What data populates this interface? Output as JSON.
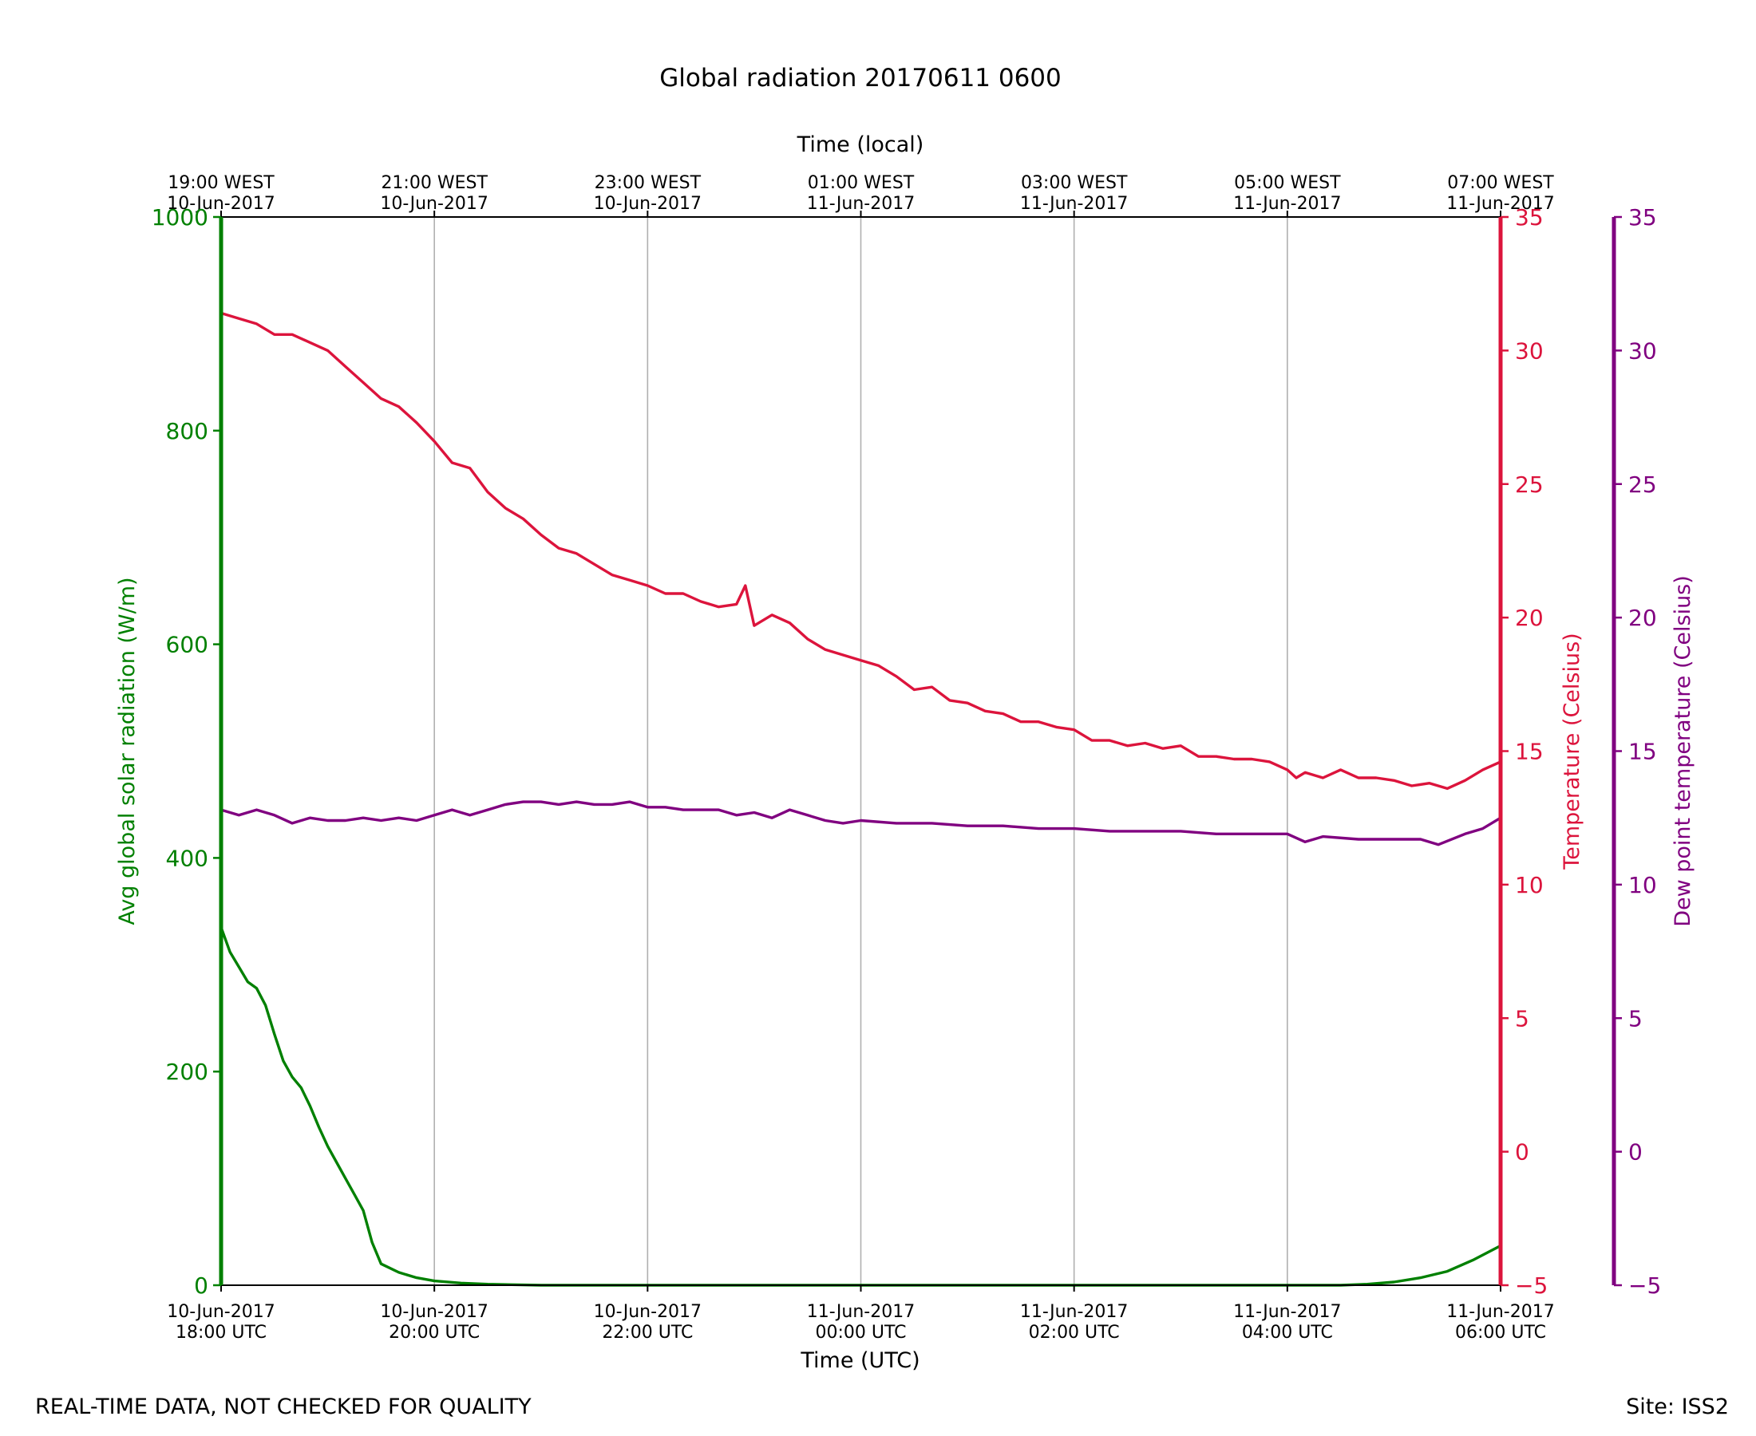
{
  "footer": {
    "disclaimer": "REAL-TIME DATA, NOT CHECKED FOR QUALITY",
    "site": "Site: ISS2"
  },
  "colors": {
    "radiation": "#008000",
    "temperature": "#dc143c",
    "dewpoint": "#800080",
    "grid": "#b0b0b0",
    "axis": "#000000"
  },
  "chart_data": {
    "type": "line",
    "title": "Global radiation 20170611 0600",
    "xlabel": "Time (UTC)",
    "xlabel_top": "Time (local)",
    "xlim": [
      "2017-06-10T18:00Z",
      "2017-06-11T06:00Z"
    ],
    "grid": "vertical",
    "x_ticks_bottom": [
      {
        "x": "2017-06-10T18:00Z",
        "date": "10-Jun-2017",
        "time": "18:00 UTC"
      },
      {
        "x": "2017-06-10T20:00Z",
        "date": "10-Jun-2017",
        "time": "20:00 UTC"
      },
      {
        "x": "2017-06-10T22:00Z",
        "date": "10-Jun-2017",
        "time": "22:00 UTC"
      },
      {
        "x": "2017-06-11T00:00Z",
        "date": "11-Jun-2017",
        "time": "00:00 UTC"
      },
      {
        "x": "2017-06-11T02:00Z",
        "date": "11-Jun-2017",
        "time": "02:00 UTC"
      },
      {
        "x": "2017-06-11T04:00Z",
        "date": "11-Jun-2017",
        "time": "04:00 UTC"
      },
      {
        "x": "2017-06-11T06:00Z",
        "date": "11-Jun-2017",
        "time": "06:00 UTC"
      }
    ],
    "x_ticks_top": [
      {
        "x": "2017-06-10T18:00Z",
        "time": "19:00 WEST",
        "date": "10-Jun-2017"
      },
      {
        "x": "2017-06-10T20:00Z",
        "time": "21:00 WEST",
        "date": "10-Jun-2017"
      },
      {
        "x": "2017-06-10T22:00Z",
        "time": "23:00 WEST",
        "date": "10-Jun-2017"
      },
      {
        "x": "2017-06-11T00:00Z",
        "time": "01:00 WEST",
        "date": "11-Jun-2017"
      },
      {
        "x": "2017-06-11T02:00Z",
        "time": "03:00 WEST",
        "date": "11-Jun-2017"
      },
      {
        "x": "2017-06-11T04:00Z",
        "time": "05:00 WEST",
        "date": "11-Jun-2017"
      },
      {
        "x": "2017-06-11T06:00Z",
        "time": "07:00 WEST",
        "date": "11-Jun-2017"
      }
    ],
    "axes": [
      {
        "id": "radiation",
        "side": "left",
        "label": "Avg global solar radiation (W/m)",
        "ylim": [
          0,
          1000
        ],
        "ticks": [
          0,
          200,
          400,
          600,
          800,
          1000
        ],
        "tick_labels": [
          "0",
          "200",
          "400",
          "600",
          "800",
          "1000"
        ],
        "color": "#008000"
      },
      {
        "id": "temperature",
        "side": "right",
        "label": "Temperature (Celsius)",
        "ylim": [
          -5,
          35
        ],
        "ticks": [
          -5,
          0,
          5,
          10,
          15,
          20,
          25,
          30,
          35
        ],
        "tick_labels": [
          "−5",
          "0",
          "5",
          "10",
          "15",
          "20",
          "25",
          "30",
          "35"
        ],
        "color": "#dc143c"
      },
      {
        "id": "dewpoint",
        "side": "right-outer",
        "label": "Dew point temperature (Celsius)",
        "ylim": [
          -5,
          35
        ],
        "ticks": [
          -5,
          0,
          5,
          10,
          15,
          20,
          25,
          30,
          35
        ],
        "tick_labels": [
          "−5",
          "0",
          "5",
          "10",
          "15",
          "20",
          "25",
          "30",
          "35"
        ],
        "color": "#800080"
      }
    ],
    "series": [
      {
        "axis": "radiation",
        "points": [
          [
            "2017-06-10T18:00Z",
            335
          ],
          [
            "2017-06-10T18:05Z",
            312
          ],
          [
            "2017-06-10T18:10Z",
            298
          ],
          [
            "2017-06-10T18:15Z",
            284
          ],
          [
            "2017-06-10T18:20Z",
            278
          ],
          [
            "2017-06-10T18:25Z",
            262
          ],
          [
            "2017-06-10T18:30Z",
            235
          ],
          [
            "2017-06-10T18:35Z",
            210
          ],
          [
            "2017-06-10T18:40Z",
            195
          ],
          [
            "2017-06-10T18:45Z",
            185
          ],
          [
            "2017-06-10T18:50Z",
            168
          ],
          [
            "2017-06-10T18:55Z",
            148
          ],
          [
            "2017-06-10T19:00Z",
            130
          ],
          [
            "2017-06-10T19:05Z",
            115
          ],
          [
            "2017-06-10T19:10Z",
            100
          ],
          [
            "2017-06-10T19:15Z",
            85
          ],
          [
            "2017-06-10T19:20Z",
            70
          ],
          [
            "2017-06-10T19:25Z",
            40
          ],
          [
            "2017-06-10T19:30Z",
            20
          ],
          [
            "2017-06-10T19:40Z",
            12
          ],
          [
            "2017-06-10T19:50Z",
            7
          ],
          [
            "2017-06-10T20:00Z",
            4
          ],
          [
            "2017-06-10T20:15Z",
            2
          ],
          [
            "2017-06-10T20:30Z",
            1
          ],
          [
            "2017-06-10T21:00Z",
            0
          ],
          [
            "2017-06-11T02:00Z",
            0
          ],
          [
            "2017-06-11T04:30Z",
            0
          ],
          [
            "2017-06-11T04:45Z",
            1
          ],
          [
            "2017-06-11T05:00Z",
            3
          ],
          [
            "2017-06-11T05:15Z",
            7
          ],
          [
            "2017-06-11T05:30Z",
            13
          ],
          [
            "2017-06-11T05:45Z",
            24
          ],
          [
            "2017-06-11T06:00Z",
            37
          ]
        ]
      },
      {
        "axis": "temperature",
        "points": [
          [
            "2017-06-10T18:00Z",
            31.4
          ],
          [
            "2017-06-10T18:10Z",
            31.2
          ],
          [
            "2017-06-10T18:20Z",
            31.0
          ],
          [
            "2017-06-10T18:30Z",
            30.6
          ],
          [
            "2017-06-10T18:40Z",
            30.6
          ],
          [
            "2017-06-10T18:50Z",
            30.3
          ],
          [
            "2017-06-10T19:00Z",
            30.0
          ],
          [
            "2017-06-10T19:10Z",
            29.4
          ],
          [
            "2017-06-10T19:20Z",
            28.8
          ],
          [
            "2017-06-10T19:30Z",
            28.2
          ],
          [
            "2017-06-10T19:40Z",
            27.9
          ],
          [
            "2017-06-10T19:50Z",
            27.3
          ],
          [
            "2017-06-10T20:00Z",
            26.6
          ],
          [
            "2017-06-10T20:10Z",
            25.8
          ],
          [
            "2017-06-10T20:20Z",
            25.6
          ],
          [
            "2017-06-10T20:30Z",
            24.7
          ],
          [
            "2017-06-10T20:40Z",
            24.1
          ],
          [
            "2017-06-10T20:50Z",
            23.7
          ],
          [
            "2017-06-10T21:00Z",
            23.1
          ],
          [
            "2017-06-10T21:10Z",
            22.6
          ],
          [
            "2017-06-10T21:20Z",
            22.4
          ],
          [
            "2017-06-10T21:30Z",
            22.0
          ],
          [
            "2017-06-10T21:40Z",
            21.6
          ],
          [
            "2017-06-10T21:50Z",
            21.4
          ],
          [
            "2017-06-10T22:00Z",
            21.2
          ],
          [
            "2017-06-10T22:10Z",
            20.9
          ],
          [
            "2017-06-10T22:20Z",
            20.9
          ],
          [
            "2017-06-10T22:30Z",
            20.6
          ],
          [
            "2017-06-10T22:40Z",
            20.4
          ],
          [
            "2017-06-10T22:50Z",
            20.5
          ],
          [
            "2017-06-10T22:55Z",
            21.2
          ],
          [
            "2017-06-10T23:00Z",
            19.7
          ],
          [
            "2017-06-10T23:10Z",
            20.1
          ],
          [
            "2017-06-10T23:20Z",
            19.8
          ],
          [
            "2017-06-10T23:30Z",
            19.2
          ],
          [
            "2017-06-10T23:40Z",
            18.8
          ],
          [
            "2017-06-10T23:50Z",
            18.6
          ],
          [
            "2017-06-11T00:00Z",
            18.4
          ],
          [
            "2017-06-11T00:10Z",
            18.2
          ],
          [
            "2017-06-11T00:20Z",
            17.8
          ],
          [
            "2017-06-11T00:30Z",
            17.3
          ],
          [
            "2017-06-11T00:40Z",
            17.4
          ],
          [
            "2017-06-11T00:50Z",
            16.9
          ],
          [
            "2017-06-11T01:00Z",
            16.8
          ],
          [
            "2017-06-11T01:10Z",
            16.5
          ],
          [
            "2017-06-11T01:20Z",
            16.4
          ],
          [
            "2017-06-11T01:30Z",
            16.1
          ],
          [
            "2017-06-11T01:40Z",
            16.1
          ],
          [
            "2017-06-11T01:50Z",
            15.9
          ],
          [
            "2017-06-11T02:00Z",
            15.8
          ],
          [
            "2017-06-11T02:10Z",
            15.4
          ],
          [
            "2017-06-11T02:20Z",
            15.4
          ],
          [
            "2017-06-11T02:30Z",
            15.2
          ],
          [
            "2017-06-11T02:40Z",
            15.3
          ],
          [
            "2017-06-11T02:50Z",
            15.1
          ],
          [
            "2017-06-11T03:00Z",
            15.2
          ],
          [
            "2017-06-11T03:10Z",
            14.8
          ],
          [
            "2017-06-11T03:20Z",
            14.8
          ],
          [
            "2017-06-11T03:30Z",
            14.7
          ],
          [
            "2017-06-11T03:40Z",
            14.7
          ],
          [
            "2017-06-11T03:50Z",
            14.6
          ],
          [
            "2017-06-11T04:00Z",
            14.3
          ],
          [
            "2017-06-11T04:05Z",
            14.0
          ],
          [
            "2017-06-11T04:10Z",
            14.2
          ],
          [
            "2017-06-11T04:20Z",
            14.0
          ],
          [
            "2017-06-11T04:30Z",
            14.3
          ],
          [
            "2017-06-11T04:40Z",
            14.0
          ],
          [
            "2017-06-11T04:50Z",
            14.0
          ],
          [
            "2017-06-11T05:00Z",
            13.9
          ],
          [
            "2017-06-11T05:10Z",
            13.7
          ],
          [
            "2017-06-11T05:20Z",
            13.8
          ],
          [
            "2017-06-11T05:30Z",
            13.6
          ],
          [
            "2017-06-11T05:40Z",
            13.9
          ],
          [
            "2017-06-11T05:50Z",
            14.3
          ],
          [
            "2017-06-11T06:00Z",
            14.6
          ]
        ]
      },
      {
        "axis": "dewpoint",
        "points": [
          [
            "2017-06-10T18:00Z",
            12.8
          ],
          [
            "2017-06-10T18:10Z",
            12.6
          ],
          [
            "2017-06-10T18:20Z",
            12.8
          ],
          [
            "2017-06-10T18:30Z",
            12.6
          ],
          [
            "2017-06-10T18:40Z",
            12.3
          ],
          [
            "2017-06-10T18:50Z",
            12.5
          ],
          [
            "2017-06-10T19:00Z",
            12.4
          ],
          [
            "2017-06-10T19:10Z",
            12.4
          ],
          [
            "2017-06-10T19:20Z",
            12.5
          ],
          [
            "2017-06-10T19:30Z",
            12.4
          ],
          [
            "2017-06-10T19:40Z",
            12.5
          ],
          [
            "2017-06-10T19:50Z",
            12.4
          ],
          [
            "2017-06-10T20:00Z",
            12.6
          ],
          [
            "2017-06-10T20:10Z",
            12.8
          ],
          [
            "2017-06-10T20:20Z",
            12.6
          ],
          [
            "2017-06-10T20:30Z",
            12.8
          ],
          [
            "2017-06-10T20:40Z",
            13.0
          ],
          [
            "2017-06-10T20:50Z",
            13.1
          ],
          [
            "2017-06-10T21:00Z",
            13.1
          ],
          [
            "2017-06-10T21:10Z",
            13.0
          ],
          [
            "2017-06-10T21:20Z",
            13.1
          ],
          [
            "2017-06-10T21:30Z",
            13.0
          ],
          [
            "2017-06-10T21:40Z",
            13.0
          ],
          [
            "2017-06-10T21:50Z",
            13.1
          ],
          [
            "2017-06-10T22:00Z",
            12.9
          ],
          [
            "2017-06-10T22:10Z",
            12.9
          ],
          [
            "2017-06-10T22:20Z",
            12.8
          ],
          [
            "2017-06-10T22:30Z",
            12.8
          ],
          [
            "2017-06-10T22:40Z",
            12.8
          ],
          [
            "2017-06-10T22:50Z",
            12.6
          ],
          [
            "2017-06-10T23:00Z",
            12.7
          ],
          [
            "2017-06-10T23:10Z",
            12.5
          ],
          [
            "2017-06-10T23:20Z",
            12.8
          ],
          [
            "2017-06-10T23:30Z",
            12.6
          ],
          [
            "2017-06-10T23:40Z",
            12.4
          ],
          [
            "2017-06-10T23:50Z",
            12.3
          ],
          [
            "2017-06-11T00:00Z",
            12.4
          ],
          [
            "2017-06-11T00:20Z",
            12.3
          ],
          [
            "2017-06-11T00:40Z",
            12.3
          ],
          [
            "2017-06-11T01:00Z",
            12.2
          ],
          [
            "2017-06-11T01:20Z",
            12.2
          ],
          [
            "2017-06-11T01:40Z",
            12.1
          ],
          [
            "2017-06-11T02:00Z",
            12.1
          ],
          [
            "2017-06-11T02:20Z",
            12.0
          ],
          [
            "2017-06-11T02:40Z",
            12.0
          ],
          [
            "2017-06-11T03:00Z",
            12.0
          ],
          [
            "2017-06-11T03:20Z",
            11.9
          ],
          [
            "2017-06-11T03:40Z",
            11.9
          ],
          [
            "2017-06-11T04:00Z",
            11.9
          ],
          [
            "2017-06-11T04:10Z",
            11.6
          ],
          [
            "2017-06-11T04:20Z",
            11.8
          ],
          [
            "2017-06-11T04:40Z",
            11.7
          ],
          [
            "2017-06-11T05:00Z",
            11.7
          ],
          [
            "2017-06-11T05:15Z",
            11.7
          ],
          [
            "2017-06-11T05:25Z",
            11.5
          ],
          [
            "2017-06-11T05:40Z",
            11.9
          ],
          [
            "2017-06-11T05:50Z",
            12.1
          ],
          [
            "2017-06-11T06:00Z",
            12.5
          ]
        ]
      }
    ]
  }
}
